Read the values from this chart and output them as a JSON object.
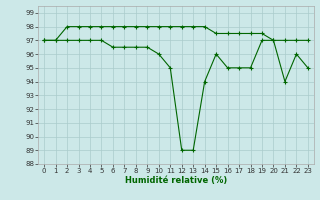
{
  "xlabel": "Humidité relative (%)",
  "background_color": "#cce8e8",
  "grid_color": "#aacccc",
  "line_color": "#006600",
  "xlim": [
    -0.5,
    23.5
  ],
  "ylim": [
    88,
    99.5
  ],
  "yticks": [
    88,
    89,
    90,
    91,
    92,
    93,
    94,
    95,
    96,
    97,
    98,
    99
  ],
  "xticks": [
    0,
    1,
    2,
    3,
    4,
    5,
    6,
    7,
    8,
    9,
    10,
    11,
    12,
    13,
    14,
    15,
    16,
    17,
    18,
    19,
    20,
    21,
    22,
    23
  ],
  "series1_x": [
    0,
    1,
    2,
    3,
    4,
    5,
    6,
    7,
    8,
    9,
    10,
    11,
    12,
    13,
    14,
    15,
    16,
    17,
    18,
    19,
    20,
    21,
    22,
    23
  ],
  "series1_y": [
    97,
    97,
    98,
    98,
    98,
    98,
    98,
    98,
    98,
    98,
    98,
    98,
    98,
    98,
    98,
    97.5,
    97.5,
    97.5,
    97.5,
    97.5,
    97,
    97,
    97,
    97
  ],
  "series2_x": [
    0,
    1,
    2,
    3,
    4,
    5,
    6,
    7,
    8,
    9,
    10,
    11,
    12,
    13,
    14,
    15,
    16,
    17,
    18,
    19,
    20,
    21,
    22,
    23
  ],
  "series2_y": [
    97,
    97,
    97,
    97,
    97,
    97,
    96.5,
    96.5,
    96.5,
    96.5,
    96,
    95,
    89,
    89,
    94,
    96,
    95,
    95,
    95,
    97,
    97,
    94,
    96,
    95
  ]
}
